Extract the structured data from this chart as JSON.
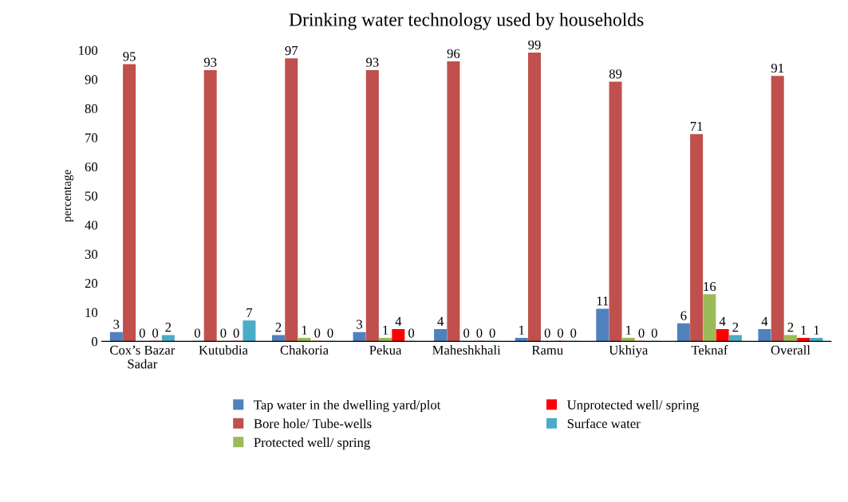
{
  "chart_data": {
    "type": "bar",
    "title": "Drinking water technology used by households",
    "ylabel": "percentage",
    "categories": [
      "Cox’s Bazar Sadar",
      "Kutubdia",
      "Chakoria",
      "Pekua",
      "Maheshkhali",
      "Ramu",
      "Ukhiya",
      "Teknaf",
      "Overall"
    ],
    "series": [
      {
        "name": "Tap water in the dwelling yard/plot",
        "color": "#4f81bd",
        "values": [
          3,
          0,
          2,
          3,
          4,
          1,
          11,
          6,
          4
        ]
      },
      {
        "name": "Bore hole/ Tube-wells",
        "color": "#c0504d",
        "values": [
          95,
          93,
          97,
          93,
          96,
          99,
          89,
          71,
          91
        ]
      },
      {
        "name": "Protected well/ spring",
        "color": "#9bbb59",
        "values": [
          0,
          0,
          1,
          1,
          0,
          0,
          1,
          16,
          2
        ]
      },
      {
        "name": "Unprotected well/ spring",
        "color": "#ff0000",
        "values": [
          0,
          0,
          0,
          4,
          0,
          0,
          0,
          4,
          1
        ]
      },
      {
        "name": "Surface water",
        "color": "#4bacc6",
        "values": [
          2,
          7,
          0,
          0,
          0,
          0,
          0,
          2,
          1
        ]
      }
    ],
    "ylim": [
      0,
      100
    ],
    "yticks": [
      0,
      10,
      20,
      30,
      40,
      50,
      60,
      70,
      80,
      90,
      100
    ],
    "data_labels": true,
    "grid": false,
    "legend": "bottom"
  }
}
